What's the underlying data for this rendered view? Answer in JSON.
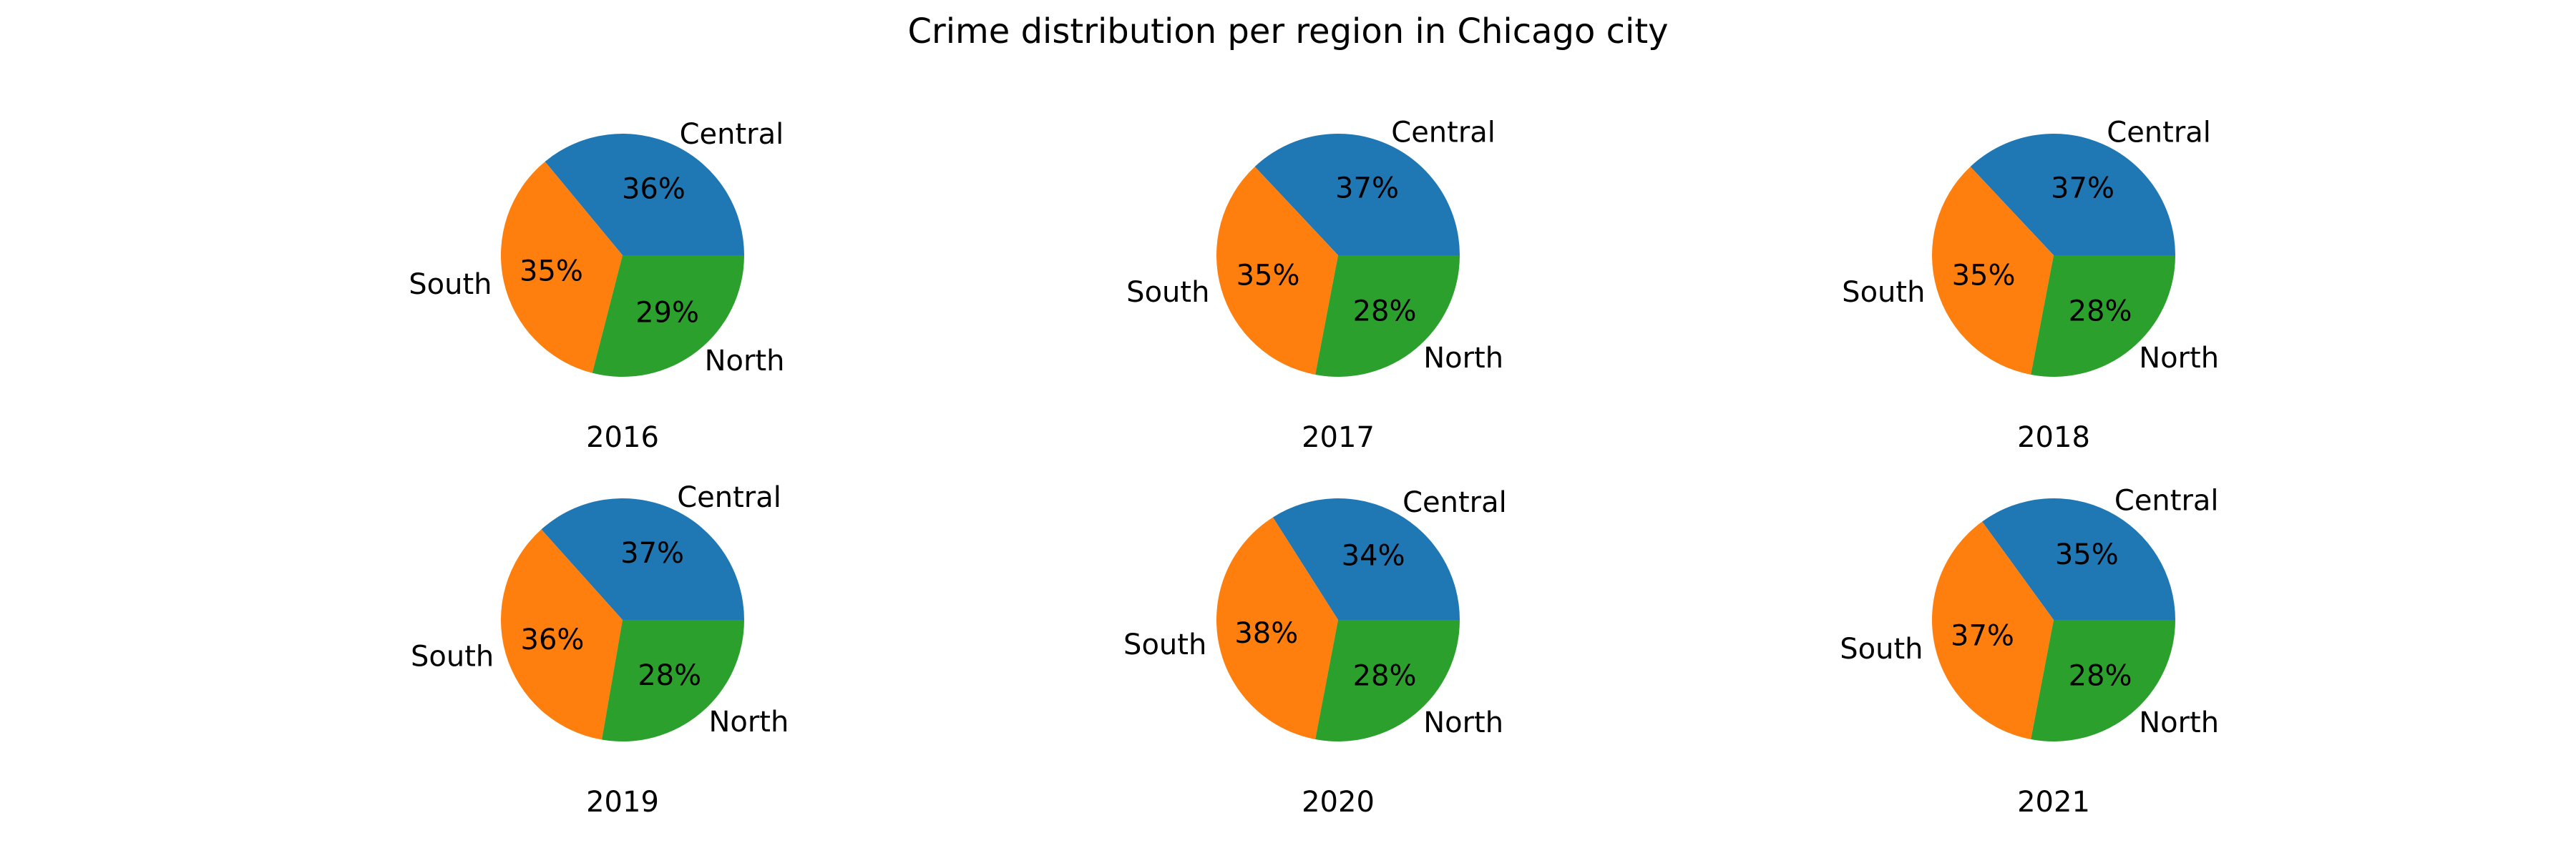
{
  "title": "Crime distribution per region in Chicago city",
  "colors": {
    "Central": "#1f77b4",
    "South": "#ff7f0e",
    "North": "#2ca02c"
  },
  "chart_data": [
    {
      "type": "pie",
      "title": "2016",
      "categories": [
        "Central",
        "South",
        "North"
      ],
      "values": [
        36,
        35,
        29
      ],
      "value_labels": [
        "36%",
        "35%",
        "29%"
      ]
    },
    {
      "type": "pie",
      "title": "2017",
      "categories": [
        "Central",
        "South",
        "North"
      ],
      "values": [
        37,
        35,
        28
      ],
      "value_labels": [
        "37%",
        "35%",
        "28%"
      ]
    },
    {
      "type": "pie",
      "title": "2018",
      "categories": [
        "Central",
        "South",
        "North"
      ],
      "values": [
        37,
        35,
        28
      ],
      "value_labels": [
        "37%",
        "35%",
        "28%"
      ]
    },
    {
      "type": "pie",
      "title": "2019",
      "categories": [
        "Central",
        "South",
        "North"
      ],
      "values": [
        37,
        36,
        28
      ],
      "value_labels": [
        "37%",
        "36%",
        "28%"
      ]
    },
    {
      "type": "pie",
      "title": "2020",
      "categories": [
        "Central",
        "South",
        "North"
      ],
      "values": [
        34,
        38,
        28
      ],
      "value_labels": [
        "34%",
        "38%",
        "28%"
      ]
    },
    {
      "type": "pie",
      "title": "2021",
      "categories": [
        "Central",
        "South",
        "North"
      ],
      "values": [
        35,
        37,
        28
      ],
      "value_labels": [
        "35%",
        "37%",
        "28%"
      ]
    }
  ]
}
